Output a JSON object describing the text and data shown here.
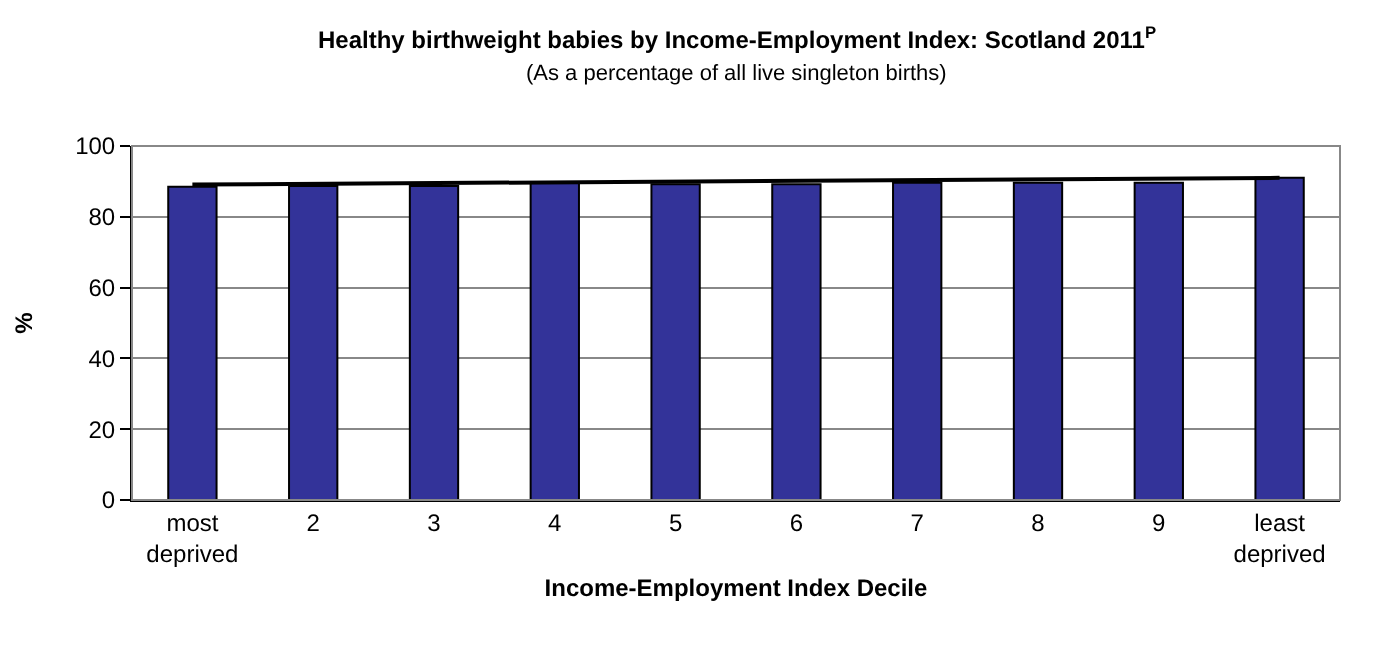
{
  "chart_data": {
    "type": "bar",
    "title": "Healthy birthweight babies by Income-Employment Index: Scotland 2011$^{P}$",
    "subtitle": "(As a percentage of all live singleton births)",
    "xlabel": "Income-Employment Index Decile",
    "ylabel": "%",
    "categories": [
      "most deprived",
      "2",
      "3",
      "4",
      "5",
      "6",
      "7",
      "8",
      "9",
      "least deprived"
    ],
    "series": [
      {
        "color": "#333399",
        "values": [
          88.5,
          88.7,
          88.7,
          89.8,
          89.2,
          89.2,
          89.6,
          89.6,
          89.6,
          91.0
        ]
      },
      {
        "type": "line",
        "color": "#000000",
        "x": [
          "most deprived",
          "least deprived"
        ],
        "values": [
          89.1,
          91.0
        ]
      }
    ],
    "ylim": [
      0,
      100
    ],
    "yticks": [
      0,
      20,
      40,
      60,
      80,
      100
    ],
    "grid": "y"
  }
}
